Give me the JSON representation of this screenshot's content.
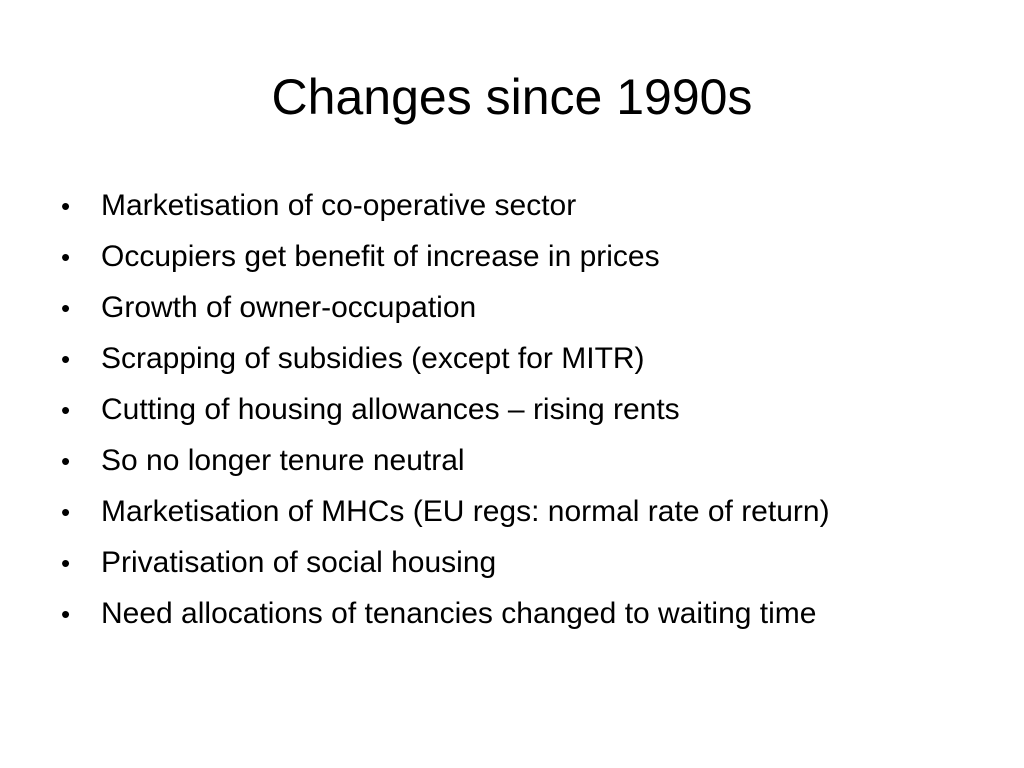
{
  "slide": {
    "title": "Changes since 1990s",
    "bullet_symbol": "•",
    "bullets": [
      "Marketisation of co-operative sector",
      "Occupiers get benefit of increase in prices",
      "Growth of owner-occupation",
      "Scrapping of subsidies (except for MITR)",
      "Cutting of housing allowances – rising rents",
      "So no longer tenure neutral",
      "Marketisation of MHCs (EU regs: normal rate of return)",
      "Privatisation of social housing",
      "Need allocations of tenancies changed to waiting time"
    ]
  }
}
